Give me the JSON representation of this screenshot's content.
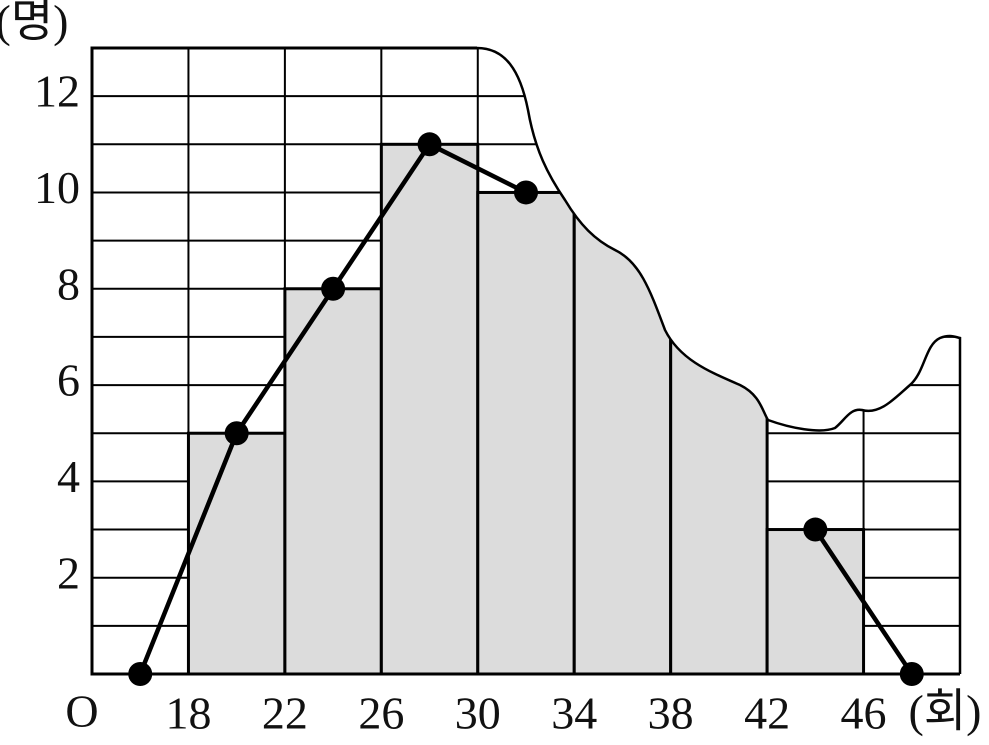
{
  "chart_data": {
    "type": "histogram",
    "bins": [
      18,
      22,
      26,
      30,
      34,
      38,
      42,
      46
    ],
    "counts": [
      5,
      8,
      11,
      10,
      null,
      null,
      3
    ],
    "polygon": {
      "x": [
        16,
        20,
        24,
        28,
        32,
        36,
        40,
        44,
        48
      ],
      "values": [
        0,
        5,
        8,
        11,
        10,
        null,
        null,
        3,
        0
      ]
    },
    "xlim": [
      14,
      50
    ],
    "ylim": [
      0,
      13
    ],
    "xticks": [
      18,
      22,
      26,
      30,
      34,
      38,
      42,
      46
    ],
    "yticks": [
      2,
      4,
      6,
      8,
      10,
      12
    ],
    "yminorticks": [
      1,
      3,
      5,
      7,
      9,
      11,
      13
    ],
    "xgrid": [
      14,
      50
    ],
    "origin_label": "O",
    "y_unit": "(명)",
    "x_unit": "(회)",
    "bar_color": "#dcdcdc",
    "line_color": "#000000",
    "grid": true
  }
}
